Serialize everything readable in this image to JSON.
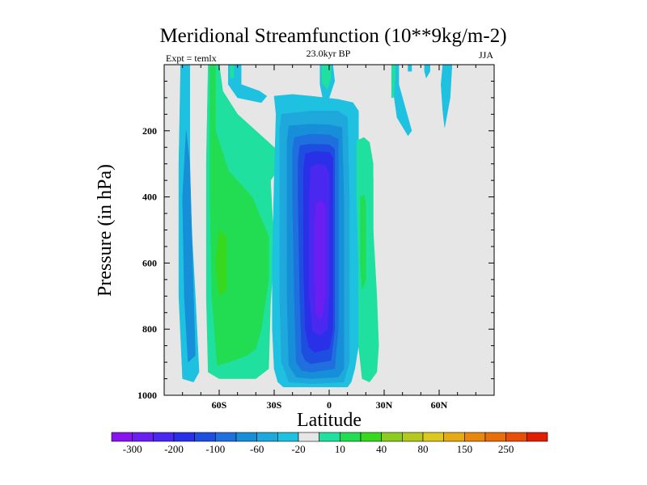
{
  "chart_data": {
    "type": "heatmap",
    "subtype": "filled-contour",
    "title": "Meridional Streamfunction (10**9kg/m-2)",
    "left_label": "Expt = temlx",
    "center_label": "23.0kyr BP",
    "right_label": "JJA",
    "xlabel": "Latitude",
    "ylabel": "Pressure (in hPa)",
    "xlim": [
      -90,
      90
    ],
    "ylim": [
      1000,
      0
    ],
    "x_ticks": [
      {
        "value": -60,
        "label": "60S"
      },
      {
        "value": -30,
        "label": "30S"
      },
      {
        "value": 0,
        "label": "0"
      },
      {
        "value": 30,
        "label": "30N"
      },
      {
        "value": 60,
        "label": "60N"
      }
    ],
    "y_ticks": [
      {
        "value": 200,
        "label": "200"
      },
      {
        "value": 400,
        "label": "400"
      },
      {
        "value": 600,
        "label": "600"
      },
      {
        "value": 800,
        "label": "800"
      },
      {
        "value": 1000,
        "label": "1000"
      }
    ],
    "background_color": "#e6e6e6",
    "colorbar": {
      "colors": [
        "#8a14f0",
        "#6a1ef0",
        "#4a28f0",
        "#2a30e8",
        "#1e4ee0",
        "#1f6fdf",
        "#178fd8",
        "#1fa8dc",
        "#1fc1e0",
        "#e6e6e6",
        "#20e0a0",
        "#22dc52",
        "#38d81e",
        "#8ccc1e",
        "#b4c81e",
        "#dcc81e",
        "#e6aa14",
        "#e8860e",
        "#e86e0a",
        "#e84e06",
        "#e01e02"
      ],
      "labels": [
        {
          "after_box": 1,
          "text": "-300"
        },
        {
          "after_box": 3,
          "text": "-200"
        },
        {
          "after_box": 5,
          "text": "-100"
        },
        {
          "after_box": 7,
          "text": "-60"
        },
        {
          "after_box": 9,
          "text": "-20"
        },
        {
          "after_box": 11,
          "text": "10"
        },
        {
          "after_box": 13,
          "text": "40"
        },
        {
          "after_box": 15,
          "text": "80"
        },
        {
          "after_box": 17,
          "text": "150"
        },
        {
          "after_box": 19,
          "text": "250"
        }
      ]
    },
    "contours": [
      {
        "name": "sh-band-lv1",
        "color": "#1fc1e0",
        "points": [
          [
            -81,
            0
          ],
          [
            -76,
            0
          ],
          [
            -76,
            400
          ],
          [
            -73,
            700
          ],
          [
            -71,
            930
          ],
          [
            -74,
            960
          ],
          [
            -80,
            950
          ],
          [
            -82,
            700
          ],
          [
            -82,
            300
          ]
        ]
      },
      {
        "name": "sh-band-lv2",
        "color": "#178fd8",
        "points": [
          [
            -78,
            200
          ],
          [
            -76,
            300
          ],
          [
            -75,
            500
          ],
          [
            -74,
            700
          ],
          [
            -73,
            880
          ],
          [
            -77,
            900
          ],
          [
            -79,
            700
          ],
          [
            -80,
            400
          ]
        ]
      },
      {
        "name": "sh-wide-lv1",
        "color": "#20e0a0",
        "points": [
          [
            -66,
            0
          ],
          [
            -60,
            0
          ],
          [
            -58,
            80
          ],
          [
            -50,
            150
          ],
          [
            -38,
            210
          ],
          [
            -28,
            260
          ],
          [
            -28,
            320
          ],
          [
            -32,
            350
          ],
          [
            -30,
            560
          ],
          [
            -32,
            720
          ],
          [
            -33,
            920
          ],
          [
            -40,
            950
          ],
          [
            -60,
            950
          ],
          [
            -66,
            930
          ],
          [
            -67,
            700
          ],
          [
            -67,
            300
          ]
        ]
      },
      {
        "name": "sh-wide-lv2",
        "color": "#22dc52",
        "points": [
          [
            -65,
            0
          ],
          [
            -62,
            0
          ],
          [
            -62,
            200
          ],
          [
            -55,
            320
          ],
          [
            -42,
            400
          ],
          [
            -36,
            480
          ],
          [
            -33,
            520
          ],
          [
            -33,
            650
          ],
          [
            -37,
            800
          ],
          [
            -40,
            860
          ],
          [
            -45,
            880
          ],
          [
            -55,
            900
          ],
          [
            -61,
            910
          ],
          [
            -64,
            700
          ],
          [
            -65,
            400
          ]
        ]
      },
      {
        "name": "sh-wide-lv3",
        "color": "#38d81e",
        "points": [
          [
            -60,
            500
          ],
          [
            -56,
            520
          ],
          [
            -56,
            680
          ],
          [
            -60,
            700
          ],
          [
            -62,
            600
          ]
        ]
      },
      {
        "name": "sh-top-cyan",
        "color": "#1fc1e0",
        "points": [
          [
            -55,
            0
          ],
          [
            -48,
            0
          ],
          [
            -48,
            60
          ],
          [
            -38,
            80
          ],
          [
            -34,
            95
          ],
          [
            -37,
            115
          ],
          [
            -50,
            100
          ],
          [
            -55,
            60
          ]
        ]
      },
      {
        "name": "sh-top-green",
        "color": "#20e0a0",
        "points": [
          [
            -54,
            0
          ],
          [
            -52,
            0
          ],
          [
            -52,
            40
          ],
          [
            -54,
            40
          ]
        ]
      },
      {
        "name": "cell-lv1",
        "color": "#1fc1e0",
        "points": [
          [
            -30,
            95
          ],
          [
            -20,
            90
          ],
          [
            -10,
            95
          ],
          [
            5,
            105
          ],
          [
            13,
            115
          ],
          [
            16,
            140
          ],
          [
            16,
            350
          ],
          [
            16,
            650
          ],
          [
            16,
            850
          ],
          [
            14,
            920
          ],
          [
            12,
            960
          ],
          [
            10,
            975
          ],
          [
            -10,
            975
          ],
          [
            -25,
            975
          ],
          [
            -28,
            960
          ],
          [
            -30,
            920
          ],
          [
            -31,
            800
          ],
          [
            -31,
            600
          ],
          [
            -30,
            350
          ],
          [
            -29,
            150
          ]
        ]
      },
      {
        "name": "cell-lv2",
        "color": "#1fa8dc",
        "points": [
          [
            -26,
            150
          ],
          [
            -10,
            140
          ],
          [
            5,
            140
          ],
          [
            10,
            160
          ],
          [
            11,
            400
          ],
          [
            11,
            700
          ],
          [
            11,
            900
          ],
          [
            8,
            960
          ],
          [
            -10,
            965
          ],
          [
            -22,
            960
          ],
          [
            -26,
            900
          ],
          [
            -27,
            700
          ],
          [
            -27,
            400
          ],
          [
            -27,
            200
          ]
        ]
      },
      {
        "name": "cell-lv3",
        "color": "#178fd8",
        "points": [
          [
            -22,
            185
          ],
          [
            -10,
            180
          ],
          [
            0,
            182
          ],
          [
            7,
            190
          ],
          [
            8,
            400
          ],
          [
            8,
            700
          ],
          [
            8,
            920
          ],
          [
            5,
            945
          ],
          [
            -10,
            950
          ],
          [
            -18,
            945
          ],
          [
            -22,
            910
          ],
          [
            -23,
            700
          ],
          [
            -23,
            400
          ],
          [
            -23,
            230
          ]
        ]
      },
      {
        "name": "cell-lv4",
        "color": "#1f6fdf",
        "points": [
          [
            -19,
            220
          ],
          [
            -10,
            210
          ],
          [
            0,
            212
          ],
          [
            5,
            225
          ],
          [
            5,
            500
          ],
          [
            5,
            800
          ],
          [
            3,
            920
          ],
          [
            -10,
            930
          ],
          [
            -15,
            925
          ],
          [
            -18,
            900
          ],
          [
            -19,
            700
          ],
          [
            -20,
            400
          ],
          [
            -20,
            260
          ]
        ]
      },
      {
        "name": "cell-lv5",
        "color": "#1e4ee0",
        "points": [
          [
            -16,
            245
          ],
          [
            -10,
            240
          ],
          [
            0,
            242
          ],
          [
            3,
            255
          ],
          [
            3,
            500
          ],
          [
            3,
            800
          ],
          [
            1,
            895
          ],
          [
            -10,
            905
          ],
          [
            -13,
            895
          ],
          [
            -15,
            870
          ],
          [
            -16,
            700
          ],
          [
            -17,
            400
          ],
          [
            -17,
            290
          ]
        ]
      },
      {
        "name": "cell-lv6",
        "color": "#2a30e8",
        "points": [
          [
            -13,
            270
          ],
          [
            -8,
            262
          ],
          [
            0,
            265
          ],
          [
            2,
            280
          ],
          [
            2,
            500
          ],
          [
            2,
            800
          ],
          [
            0,
            860
          ],
          [
            -8,
            870
          ],
          [
            -11,
            855
          ],
          [
            -13,
            800
          ],
          [
            -14,
            600
          ],
          [
            -14,
            320
          ]
        ]
      },
      {
        "name": "cell-lv7",
        "color": "#4a28f0",
        "points": [
          [
            -10,
            310
          ],
          [
            -6,
            300
          ],
          [
            -2,
            305
          ],
          [
            0,
            330
          ],
          [
            0,
            700
          ],
          [
            -1,
            800
          ],
          [
            -5,
            820
          ],
          [
            -9,
            805
          ],
          [
            -11,
            700
          ],
          [
            -11,
            400
          ]
        ]
      },
      {
        "name": "cell-lv8",
        "color": "#6a1ef0",
        "points": [
          [
            -7,
            420
          ],
          [
            -4,
            410
          ],
          [
            -2,
            430
          ],
          [
            -2,
            700
          ],
          [
            -4,
            770
          ],
          [
            -7,
            760
          ],
          [
            -8,
            650
          ],
          [
            -8,
            470
          ]
        ]
      },
      {
        "name": "nh-green-band",
        "color": "#20e0a0",
        "points": [
          [
            15,
            230
          ],
          [
            19,
            220
          ],
          [
            22,
            235
          ],
          [
            24,
            300
          ],
          [
            24,
            500
          ],
          [
            26,
            700
          ],
          [
            27,
            850
          ],
          [
            26,
            930
          ],
          [
            22,
            960
          ],
          [
            18,
            950
          ],
          [
            16,
            850
          ],
          [
            16,
            600
          ],
          [
            15,
            400
          ]
        ]
      },
      {
        "name": "nh-green-inner",
        "color": "#22dc52",
        "points": [
          [
            17,
            400
          ],
          [
            19,
            395
          ],
          [
            20,
            420
          ],
          [
            20,
            650
          ],
          [
            18,
            680
          ],
          [
            17,
            600
          ]
        ]
      },
      {
        "name": "nh-spike",
        "color": "#20e0a0",
        "points": [
          [
            23,
            340
          ],
          [
            24,
            340
          ],
          [
            24,
            650
          ],
          [
            23,
            650
          ]
        ]
      },
      {
        "name": "eq-top-cyan",
        "color": "#1fc1e0",
        "points": [
          [
            -5,
            0
          ],
          [
            2,
            0
          ],
          [
            3,
            50
          ],
          [
            0,
            100
          ],
          [
            -3,
            115
          ],
          [
            -5,
            60
          ]
        ]
      },
      {
        "name": "eq-top-green",
        "color": "#20e0a0",
        "points": [
          [
            -4,
            0
          ],
          [
            1,
            0
          ],
          [
            1,
            40
          ],
          [
            -1,
            75
          ],
          [
            -4,
            55
          ]
        ]
      },
      {
        "name": "nh-cyan-1",
        "color": "#1fc1e0",
        "points": [
          [
            35,
            0
          ],
          [
            38,
            0
          ],
          [
            38,
            60
          ],
          [
            42,
            140
          ],
          [
            45,
            200
          ],
          [
            43,
            215
          ],
          [
            37,
            160
          ],
          [
            35,
            80
          ]
        ]
      },
      {
        "name": "nh-green-top",
        "color": "#20e0a0",
        "points": [
          [
            34,
            0
          ],
          [
            36,
            0
          ],
          [
            36,
            40
          ],
          [
            35,
            100
          ],
          [
            34,
            100
          ]
        ]
      },
      {
        "name": "nh-cyan-2",
        "color": "#1fc1e0",
        "points": [
          [
            52,
            0
          ],
          [
            55,
            0
          ],
          [
            55,
            20
          ],
          [
            53,
            40
          ],
          [
            52,
            20
          ]
        ]
      },
      {
        "name": "nh-cyan-3",
        "color": "#1fc1e0",
        "points": [
          [
            62,
            0
          ],
          [
            67,
            0
          ],
          [
            66,
            100
          ],
          [
            64,
            160
          ],
          [
            63,
            190
          ],
          [
            62,
            140
          ],
          [
            61,
            60
          ]
        ]
      },
      {
        "name": "nh-cyan-4",
        "color": "#1fc1e0",
        "points": [
          [
            43,
            0
          ],
          [
            45,
            0
          ],
          [
            45,
            20
          ],
          [
            43,
            20
          ]
        ]
      }
    ]
  }
}
